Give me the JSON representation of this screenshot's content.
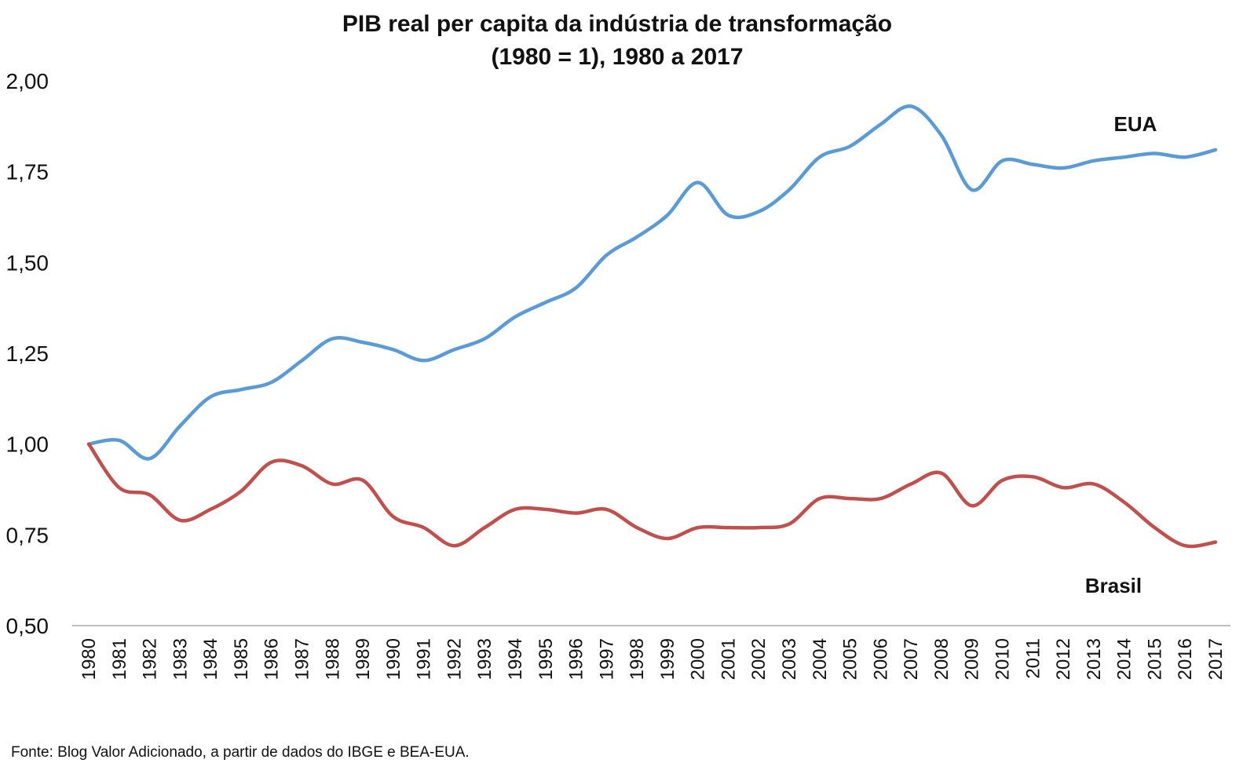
{
  "chart_data": {
    "type": "line",
    "title": "PIB real per capita da indústria de transformação",
    "subtitle": "(1980 = 1), 1980 a 2017",
    "x": [
      1980,
      1981,
      1982,
      1983,
      1984,
      1985,
      1986,
      1987,
      1988,
      1989,
      1990,
      1991,
      1992,
      1993,
      1994,
      1995,
      1996,
      1997,
      1998,
      1999,
      2000,
      2001,
      2002,
      2003,
      2004,
      2005,
      2006,
      2007,
      2008,
      2009,
      2010,
      2011,
      2012,
      2013,
      2014,
      2015,
      2016,
      2017
    ],
    "x_tick_labels": [
      "1980",
      "1981",
      "1982",
      "1983",
      "1984",
      "1985",
      "1986",
      "1987",
      "1988",
      "1989",
      "1990",
      "1991",
      "1992",
      "1993",
      "1994",
      "1995",
      "1996",
      "1997",
      "1998",
      "1999",
      "2000",
      "2001",
      "2002",
      "2003",
      "2004",
      "2005",
      "2006",
      "2007",
      "2008",
      "2009",
      "2010",
      "2011",
      "2012",
      "2013",
      "2014",
      "2015",
      "2016",
      "2017"
    ],
    "ylim": [
      0.5,
      2.0
    ],
    "y_ticks": [
      0.5,
      0.75,
      1.0,
      1.25,
      1.5,
      1.75,
      2.0
    ],
    "y_tick_labels": [
      "0,50",
      "0,75",
      "1,00",
      "1,25",
      "1,50",
      "1,75",
      "2,00"
    ],
    "grid": false,
    "series": [
      {
        "name": "EUA",
        "color": "#5b9bd5",
        "values": [
          1.0,
          1.01,
          0.96,
          1.05,
          1.13,
          1.15,
          1.17,
          1.23,
          1.29,
          1.28,
          1.26,
          1.23,
          1.26,
          1.29,
          1.35,
          1.39,
          1.43,
          1.52,
          1.57,
          1.63,
          1.72,
          1.63,
          1.64,
          1.7,
          1.79,
          1.82,
          1.88,
          1.93,
          1.85,
          1.7,
          1.78,
          1.77,
          1.76,
          1.78,
          1.79,
          1.8,
          1.79,
          1.81
        ]
      },
      {
        "name": "Brasil",
        "color": "#c0504d",
        "values": [
          1.0,
          0.88,
          0.86,
          0.79,
          0.82,
          0.87,
          0.95,
          0.94,
          0.89,
          0.9,
          0.8,
          0.77,
          0.72,
          0.77,
          0.82,
          0.82,
          0.81,
          0.82,
          0.77,
          0.74,
          0.77,
          0.77,
          0.77,
          0.78,
          0.85,
          0.85,
          0.85,
          0.89,
          0.92,
          0.83,
          0.9,
          0.91,
          0.88,
          0.89,
          0.84,
          0.77,
          0.72,
          0.73
        ]
      }
    ],
    "source": "Fonte: Blog Valor Adicionado, a partir de dados do IBGE e BEA-EUA."
  }
}
